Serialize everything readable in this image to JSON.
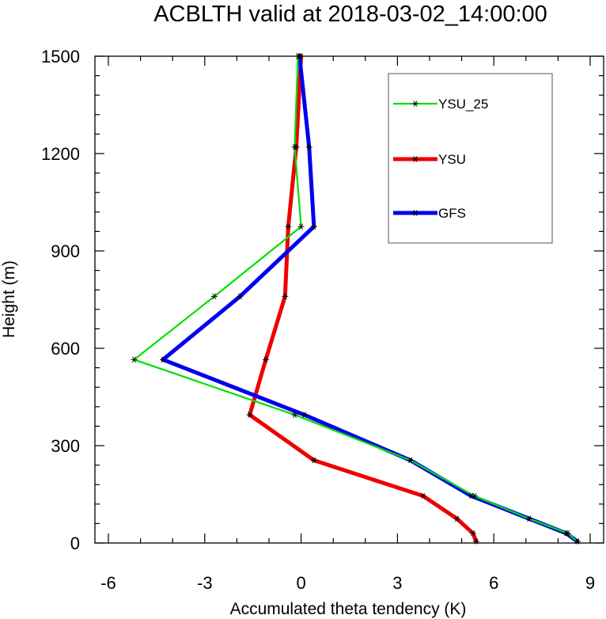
{
  "chart_data": {
    "type": "line",
    "title": "ACBLTH valid at 2018-03-02_14:00:00",
    "xlabel": "Accumulated theta tendency (K)",
    "ylabel": "Height (m)",
    "xlim": [
      -6,
      9
    ],
    "ylim": [
      0,
      1500
    ],
    "xticks": [
      -6,
      -3,
      0,
      3,
      6,
      9
    ],
    "yticks": [
      0,
      300,
      600,
      900,
      1200,
      1500
    ],
    "x_tick_labels": [
      "-6",
      "-3",
      "0",
      "3",
      "6",
      "9"
    ],
    "y_tick_labels": [
      "0",
      "300",
      "600",
      "900",
      "1200",
      "1500"
    ],
    "legend_position": "top-right",
    "series": [
      {
        "name": "YSU_25",
        "color": "#00e000",
        "line_weight": "thin",
        "marker": "asterisk",
        "points": [
          {
            "x": 8.6,
            "y": 5
          },
          {
            "x": 8.3,
            "y": 30
          },
          {
            "x": 7.1,
            "y": 75
          },
          {
            "x": 5.4,
            "y": 145
          },
          {
            "x": 3.4,
            "y": 255
          },
          {
            "x": -0.2,
            "y": 395
          },
          {
            "x": -5.2,
            "y": 565
          },
          {
            "x": -2.7,
            "y": 760
          },
          {
            "x": 0.0,
            "y": 975
          },
          {
            "x": -0.2,
            "y": 1220
          },
          {
            "x": -0.1,
            "y": 1500
          }
        ]
      },
      {
        "name": "YSU",
        "color": "#ee0000",
        "line_weight": "thick",
        "marker": "asterisk",
        "points": [
          {
            "x": 5.45,
            "y": 5
          },
          {
            "x": 5.35,
            "y": 30
          },
          {
            "x": 4.85,
            "y": 75
          },
          {
            "x": 3.8,
            "y": 145
          },
          {
            "x": 0.4,
            "y": 255
          },
          {
            "x": -1.6,
            "y": 395
          },
          {
            "x": -1.1,
            "y": 565
          },
          {
            "x": -0.5,
            "y": 760
          },
          {
            "x": -0.4,
            "y": 975
          },
          {
            "x": -0.15,
            "y": 1220
          },
          {
            "x": 0.0,
            "y": 1500
          }
        ]
      },
      {
        "name": "GFS",
        "color": "#0000ee",
        "line_weight": "thick",
        "marker": "asterisk",
        "points": [
          {
            "x": 8.6,
            "y": 5
          },
          {
            "x": 8.25,
            "y": 30
          },
          {
            "x": 7.1,
            "y": 75
          },
          {
            "x": 5.3,
            "y": 145
          },
          {
            "x": 3.4,
            "y": 255
          },
          {
            "x": 0.1,
            "y": 395
          },
          {
            "x": -4.3,
            "y": 565
          },
          {
            "x": -1.9,
            "y": 760
          },
          {
            "x": 0.4,
            "y": 975
          },
          {
            "x": 0.25,
            "y": 1220
          },
          {
            "x": -0.05,
            "y": 1500
          }
        ]
      }
    ]
  }
}
